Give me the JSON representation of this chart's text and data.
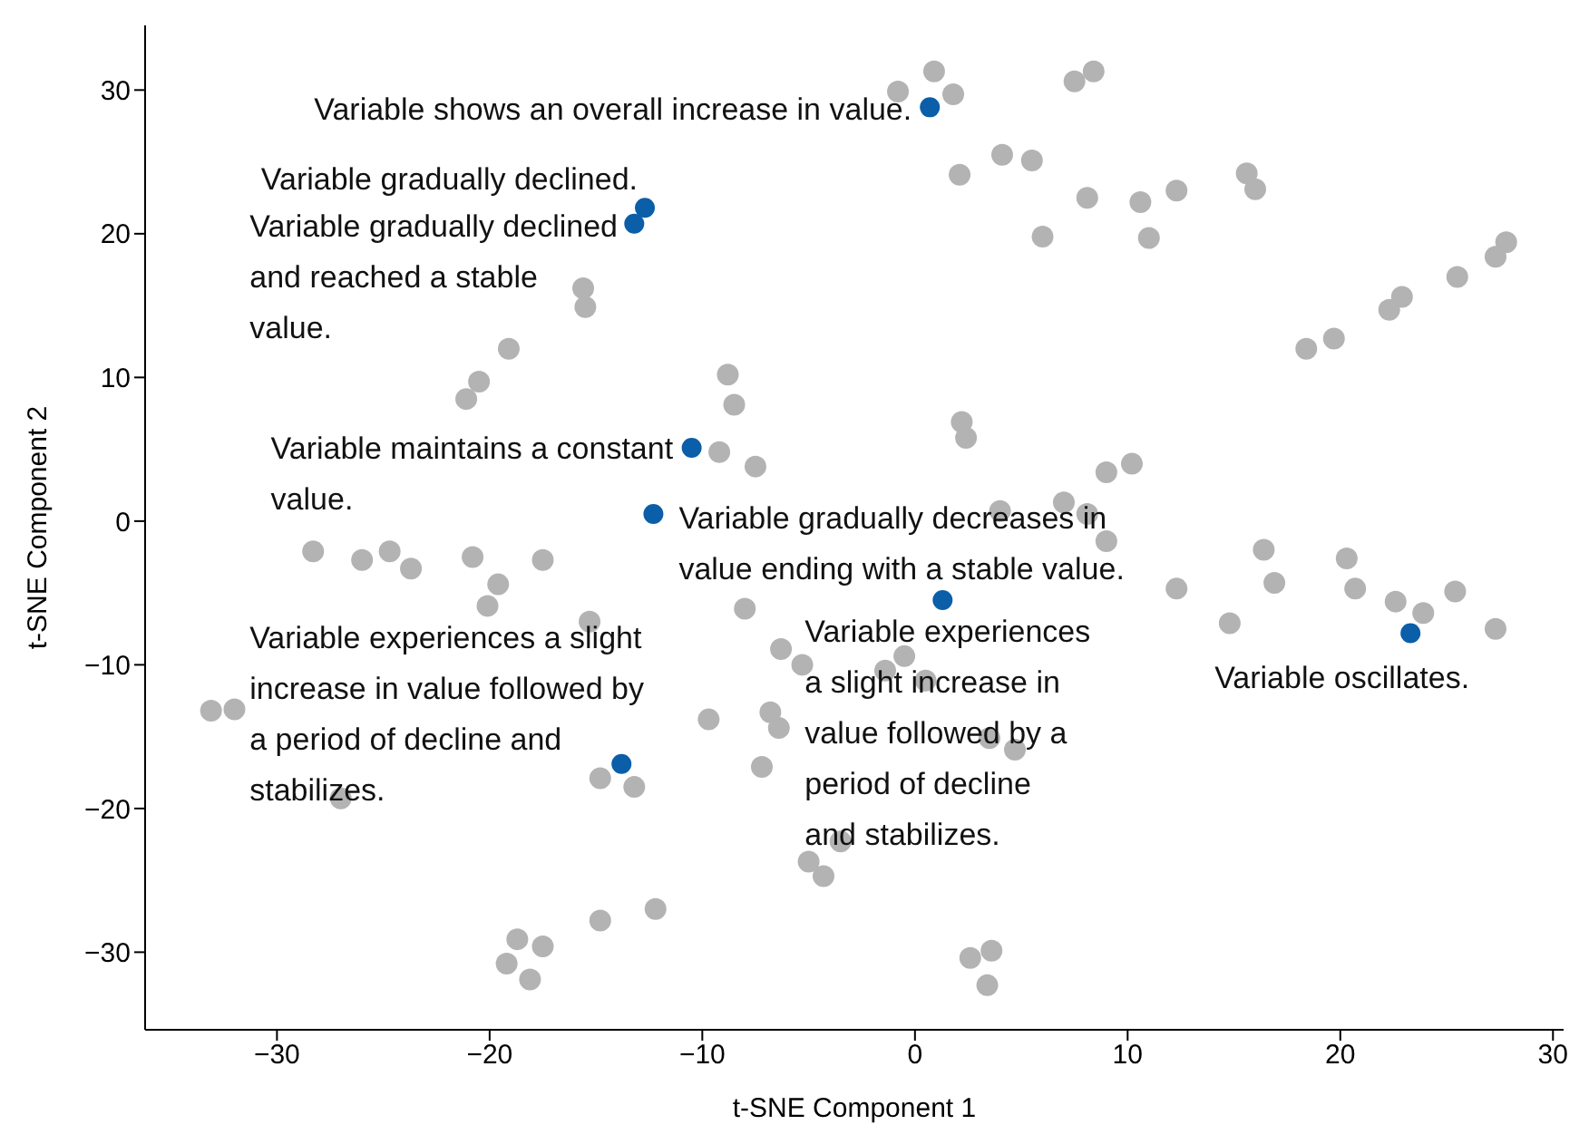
{
  "chart_data": {
    "type": "scatter",
    "xlabel": "t-SNE Component 1",
    "ylabel": "t-SNE Component 2",
    "xlim": [
      -36.2,
      30.5
    ],
    "ylim": [
      -35.4,
      34.5
    ],
    "xticks": [
      -30,
      -20,
      -10,
      0,
      10,
      20,
      30
    ],
    "yticks": [
      -30,
      -20,
      -10,
      0,
      10,
      20,
      30
    ],
    "marker": "circle",
    "series": [
      {
        "color": "#b3b3b3",
        "x": [
          -0.8,
          0.9,
          1.8,
          7.5,
          8.4,
          2.1,
          4.1,
          5.5,
          6.0,
          8.1,
          10.6,
          11.0,
          12.3,
          15.6,
          16.0,
          18.4,
          19.7,
          22.3,
          22.9,
          25.5,
          27.3,
          27.8,
          2.2,
          2.4,
          9.0,
          10.2,
          4.0,
          7.0,
          8.1,
          -15.6,
          -15.5,
          -19.1,
          -20.5,
          -21.1,
          -8.8,
          -8.5,
          -9.2,
          -7.5,
          -28.3,
          -26.0,
          -24.7,
          -23.7,
          -20.8,
          -19.6,
          -20.1,
          -17.5,
          -15.3,
          -8.0,
          -6.3,
          -5.3,
          -9.7,
          -6.8,
          -6.4,
          -7.2,
          -33.1,
          -32.0,
          -27.0,
          -14.8,
          -13.2,
          -5.0,
          -4.3,
          -12.2,
          -14.8,
          -18.7,
          -17.5,
          -19.2,
          -18.1,
          9.0,
          16.4,
          16.9,
          12.3,
          14.8,
          20.3,
          20.7,
          22.6,
          23.9,
          25.4,
          27.3,
          2.6,
          3.6,
          3.4,
          -0.5,
          -1.4,
          0.5,
          3.5,
          4.7,
          -3.5
        ],
        "values": [
          29.9,
          31.3,
          29.7,
          30.6,
          31.3,
          24.1,
          25.5,
          25.1,
          19.8,
          22.5,
          22.2,
          19.7,
          23.0,
          24.2,
          23.1,
          12.0,
          12.7,
          14.7,
          15.6,
          17.0,
          18.4,
          19.4,
          6.9,
          5.8,
          3.4,
          4.0,
          0.7,
          1.3,
          0.5,
          16.2,
          14.9,
          12.0,
          9.7,
          8.5,
          10.2,
          8.1,
          4.8,
          3.8,
          -2.1,
          -2.7,
          -2.1,
          -3.3,
          -2.5,
          -4.4,
          -5.9,
          -2.7,
          -7.0,
          -6.1,
          -8.9,
          -10.0,
          -13.8,
          -13.3,
          -14.4,
          -17.1,
          -13.2,
          -13.1,
          -19.3,
          -17.9,
          -18.5,
          -23.7,
          -24.7,
          -27.0,
          -27.8,
          -29.1,
          -29.6,
          -30.8,
          -31.9,
          -1.4,
          -2.0,
          -4.3,
          -4.7,
          -7.1,
          -2.6,
          -4.7,
          -5.6,
          -6.4,
          -4.9,
          -7.5,
          -30.4,
          -29.9,
          -32.3,
          -9.4,
          -10.4,
          -11.1,
          -15.1,
          -15.9,
          -22.3
        ]
      },
      {
        "color": "#0b5ea8",
        "x": [
          0.7,
          -12.7,
          -13.2,
          -10.5,
          -12.3,
          1.3,
          23.3,
          -13.8
        ],
        "values": [
          28.8,
          21.8,
          20.7,
          5.1,
          0.5,
          -5.5,
          -7.8,
          -16.9
        ]
      }
    ],
    "annotations": [
      {
        "text": "Variable shows an overall increase in value.",
        "x": 0.7,
        "y": 28.8
      },
      {
        "text": "Variable gradually declined.",
        "x": -12.7,
        "y": 21.8
      },
      {
        "text": "Variable gradually declined and reached a stable value.",
        "x": -13.2,
        "y": 20.7
      },
      {
        "text": "Variable maintains a constant value.",
        "x": -10.5,
        "y": 5.1
      },
      {
        "text": "Variable gradually decreases in value ending with a stable value.",
        "x": -12.3,
        "y": 0.5
      },
      {
        "text": "Variable experiences a slight increase in value followed by a period of decline and stabilizes.",
        "x": 1.3,
        "y": -5.5
      },
      {
        "text": "Variable oscillates.",
        "x": 23.3,
        "y": -7.8
      },
      {
        "text": "Variable experiences a slight increase in value followed by a period of decline and stabilizes.",
        "x": -13.8,
        "y": -16.9
      }
    ]
  }
}
